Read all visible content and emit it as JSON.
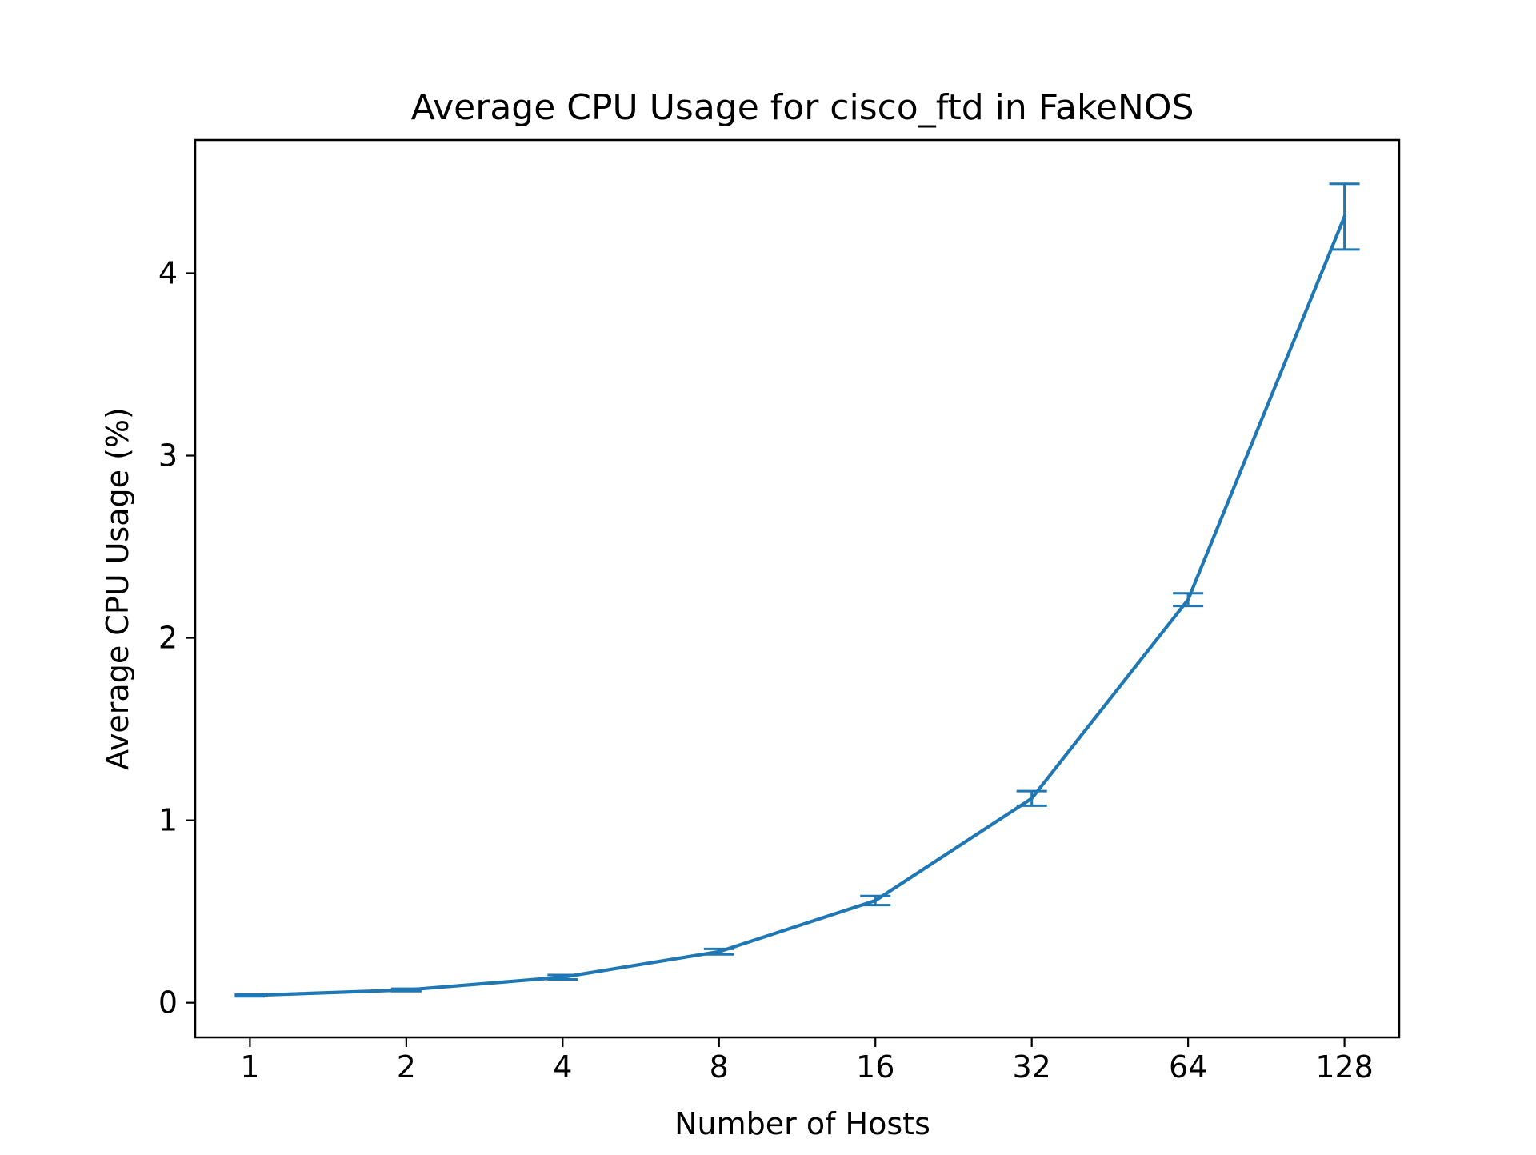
{
  "chart_data": {
    "type": "line",
    "title": "Average CPU Usage for cisco_ftd in FakeNOS",
    "xlabel": "Number of Hosts",
    "ylabel": "Average CPU Usage (%)",
    "x_scale": "log2",
    "categories": [
      "1",
      "2",
      "4",
      "8",
      "16",
      "32",
      "64",
      "128"
    ],
    "x": [
      1,
      2,
      4,
      8,
      16,
      32,
      64,
      128
    ],
    "y_ticks": [
      0,
      1,
      2,
      3,
      4
    ],
    "y_tick_labels": [
      "0",
      "1",
      "2",
      "3",
      "4"
    ],
    "ylim": [
      -0.19,
      4.73
    ],
    "grid": false,
    "color": "#1f77b4",
    "series": [
      {
        "values": [
          0.04,
          0.07,
          0.14,
          0.28,
          0.56,
          1.12,
          2.21,
          4.31
        ],
        "error": [
          0.005,
          0.007,
          0.012,
          0.015,
          0.025,
          0.04,
          0.035,
          0.18
        ]
      }
    ]
  }
}
